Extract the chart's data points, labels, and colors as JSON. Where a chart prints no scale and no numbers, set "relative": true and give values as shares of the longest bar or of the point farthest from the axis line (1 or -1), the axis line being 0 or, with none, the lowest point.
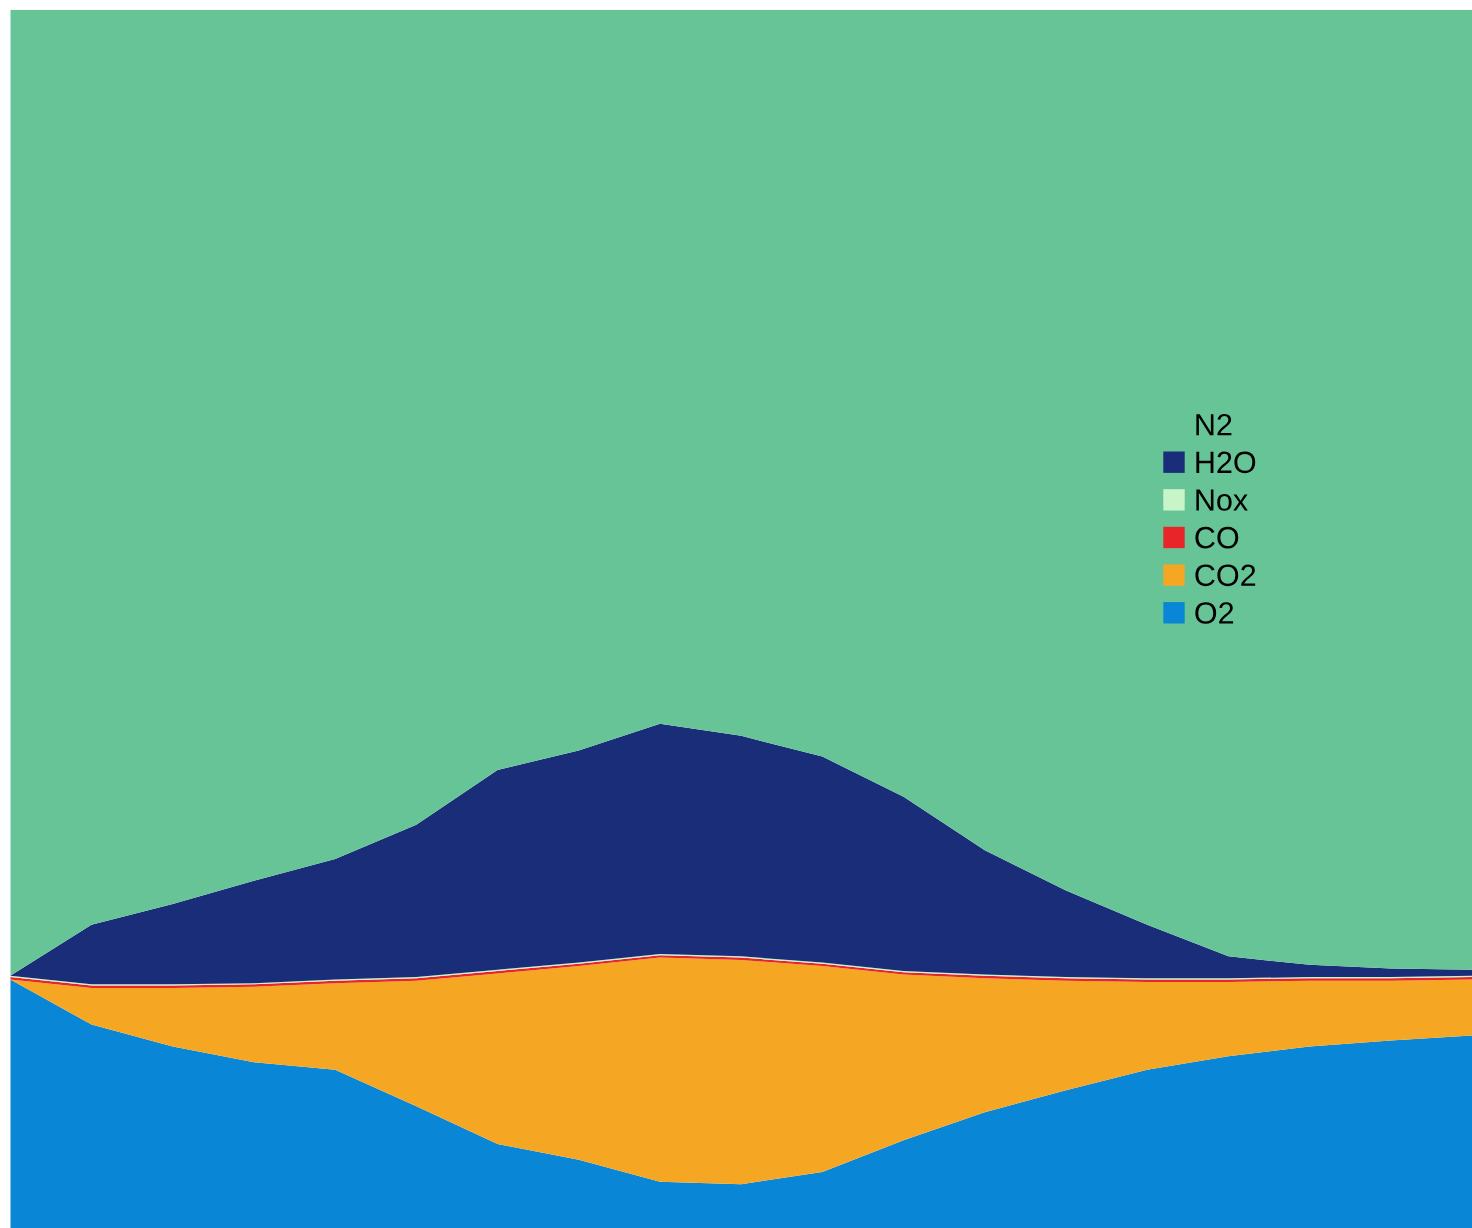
{
  "chart_data": {
    "type": "area",
    "stacked": true,
    "relative": true,
    "legend": "right",
    "categories": [
      null,
      null,
      null,
      null,
      null,
      null,
      null,
      null,
      null,
      null,
      null,
      null,
      null,
      null,
      null,
      null,
      null,
      null,
      null
    ],
    "series": [
      {
        "name": "O2",
        "color": "#0a86d6",
        "values": [
          0.204,
          0.167,
          0.149,
          0.136,
          0.13,
          0.1,
          0.069,
          0.056,
          0.038,
          0.036,
          0.046,
          0.072,
          0.095,
          0.113,
          0.13,
          0.141,
          0.149,
          0.154,
          0.158
        ]
      },
      {
        "name": "CO2",
        "color": "#f5a623",
        "values": [
          0,
          0.03,
          0.048,
          0.062,
          0.071,
          0.103,
          0.14,
          0.159,
          0.184,
          0.184,
          0.169,
          0.136,
          0.11,
          0.09,
          0.072,
          0.061,
          0.054,
          0.049,
          0.046
        ]
      },
      {
        "name": "CO",
        "color": "#e8262a",
        "values": [
          0.002,
          0.002,
          0.002,
          0.002,
          0.002,
          0.002,
          0.002,
          0.002,
          0.002,
          0.002,
          0.002,
          0.002,
          0.002,
          0.002,
          0.002,
          0.002,
          0.002,
          0.002,
          0.002
        ]
      },
      {
        "name": "Nox",
        "color": "#c8f5c8",
        "values": [
          0.001,
          0.001,
          0.001,
          0.001,
          0.001,
          0.001,
          0.001,
          0.001,
          0.001,
          0.001,
          0.001,
          0.001,
          0.001,
          0.001,
          0.001,
          0.001,
          0.001,
          0.001,
          0.001
        ]
      },
      {
        "name": "H2O",
        "color": "#1a2d78",
        "values": [
          0,
          0.049,
          0.066,
          0.084,
          0.099,
          0.125,
          0.164,
          0.174,
          0.189,
          0.181,
          0.169,
          0.143,
          0.102,
          0.071,
          0.044,
          0.018,
          0.01,
          0.007,
          0.005
        ]
      },
      {
        "name": "N2",
        "color": "#66c497",
        "values": [
          0.793,
          0.751,
          0.734,
          0.715,
          0.697,
          0.669,
          0.624,
          0.608,
          0.586,
          0.596,
          0.613,
          0.646,
          0.69,
          0.723,
          0.751,
          0.777,
          0.784,
          0.787,
          0.788
        ]
      }
    ]
  }
}
